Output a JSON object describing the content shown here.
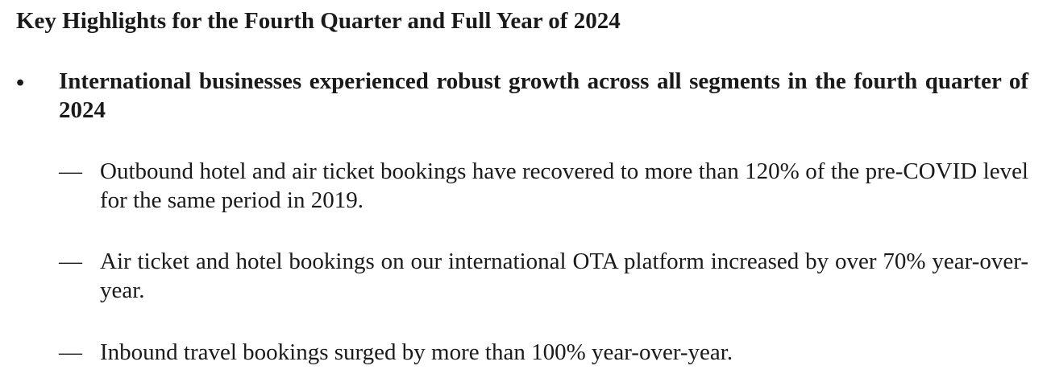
{
  "heading": "Key Highlights for the Fourth Quarter and Full Year of 2024",
  "bullet": {
    "marker": "•",
    "text": "International businesses experienced robust growth across all segments in the fourth quarter of 2024",
    "sub_items": [
      {
        "marker": "—",
        "text": "Outbound hotel and air ticket bookings have recovered to more than 120% of the pre-COVID level for the same period in 2019."
      },
      {
        "marker": "—",
        "text": "Air ticket and hotel bookings on our international OTA platform increased by over 70% year-over-year."
      },
      {
        "marker": "—",
        "text": "Inbound travel bookings surged by more than 100% year-over-year."
      }
    ]
  }
}
